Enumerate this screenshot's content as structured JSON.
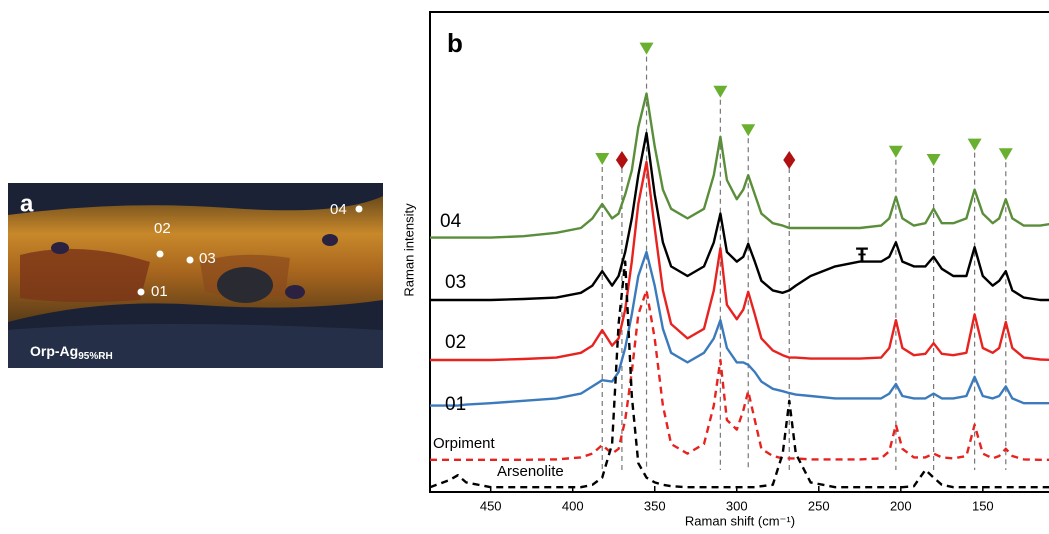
{
  "panel_a": {
    "letter": "a",
    "label": {
      "main": "Orp-Ag",
      "sub": "95%RH"
    },
    "points": [
      "02",
      "03",
      "01",
      "04"
    ]
  },
  "chart_data": {
    "type": "line",
    "panel_letter": "b",
    "xlabel": "Raman shift (cm⁻¹)",
    "ylabel": "Raman intensity",
    "xlim": [
      487,
      106
    ],
    "xticks": [
      450,
      400,
      350,
      300,
      250,
      200,
      150
    ],
    "ylim": [
      0,
      100
    ],
    "x": [
      487,
      475,
      470,
      465,
      450,
      430,
      410,
      395,
      388,
      382,
      376,
      372,
      368,
      364,
      360,
      355,
      350,
      345,
      340,
      330,
      320,
      314,
      310,
      306,
      300,
      296,
      293,
      289,
      285,
      278,
      272,
      268,
      264,
      255,
      240,
      225,
      212,
      207,
      203,
      199,
      192,
      185,
      180,
      175,
      168,
      160,
      155,
      150,
      144,
      140,
      136,
      132,
      125,
      115,
      106
    ],
    "series": [
      {
        "name": "04",
        "color": "#5a8e3a",
        "dashed": false,
        "values": [
          53,
          53,
          53,
          53,
          53,
          53.3,
          54,
          55,
          57,
          60,
          57,
          58,
          62,
          67,
          76,
          83,
          72,
          63,
          59,
          57,
          59,
          66,
          74,
          65,
          61,
          63,
          66,
          62,
          58,
          56,
          55.5,
          55,
          55,
          55,
          55,
          55,
          55.5,
          57,
          61.5,
          57,
          55.5,
          56,
          59,
          56,
          56,
          57,
          63,
          58,
          56,
          57,
          61,
          57,
          55.5,
          55.5,
          56
        ]
      },
      {
        "name": "03",
        "color": "#000000",
        "dashed": false,
        "values": [
          40,
          40,
          40,
          40,
          40,
          40.2,
          40.5,
          41.5,
          43,
          46,
          43,
          45,
          50,
          57,
          66,
          74.8,
          62,
          52,
          47,
          45,
          47,
          52,
          58,
          50,
          48,
          49,
          51.7,
          48,
          44,
          42,
          41.5,
          42,
          43,
          45,
          47,
          48,
          48,
          49,
          52,
          48,
          47,
          47,
          49,
          46.5,
          45,
          45,
          51,
          45,
          43,
          44,
          46,
          42,
          40.5,
          40,
          40
        ]
      },
      {
        "name": "02",
        "color": "#e8231f",
        "dashed": false,
        "values": [
          27.5,
          27.5,
          27.5,
          27.5,
          27.5,
          27.7,
          28,
          29,
          30.5,
          33.7,
          30.5,
          32,
          38,
          48,
          60,
          68.75,
          55,
          42,
          35,
          32,
          34,
          42,
          50.8,
          39,
          36,
          38,
          41.7,
          37,
          32,
          29.5,
          28.5,
          28,
          28,
          27.8,
          27.8,
          27.8,
          28,
          30,
          35.8,
          30,
          28.5,
          28.8,
          31,
          28.8,
          28.5,
          29,
          37,
          30,
          29,
          30,
          35.4,
          30,
          28,
          27.6,
          27.5
        ]
      },
      {
        "name": "01",
        "color": "#3b7bbd",
        "dashed": false,
        "values": [
          18,
          18,
          18,
          18.2,
          18.5,
          19,
          19.5,
          20.5,
          22,
          23.3,
          23,
          25,
          30,
          37,
          45,
          50,
          43,
          34,
          29,
          27,
          29,
          32,
          35.8,
          30,
          27,
          27,
          26.5,
          25,
          23,
          21.5,
          21,
          20.6,
          20.3,
          20,
          19.5,
          19.5,
          19.5,
          20.5,
          22.5,
          20,
          19.5,
          19.5,
          20.5,
          19.5,
          19.5,
          20,
          24,
          20,
          19.5,
          20,
          22,
          19.5,
          18.5,
          18.5,
          18.5
        ]
      },
      {
        "name": "Orpiment",
        "color": "#e8231f",
        "dashed": true,
        "values": [
          6.7,
          6.7,
          6.7,
          6.7,
          6.7,
          6.7,
          6.8,
          7.2,
          8,
          9.8,
          8,
          9,
          15,
          25,
          37,
          42,
          32,
          18,
          10,
          8,
          10,
          18,
          27.5,
          15,
          13,
          17,
          21,
          15,
          9,
          7.5,
          7,
          7,
          7,
          6.8,
          6.8,
          6.8,
          7,
          8.5,
          14,
          9,
          7.2,
          7.2,
          8,
          7.2,
          7,
          7.5,
          14,
          8,
          7,
          7.5,
          9,
          7.5,
          6.8,
          6.7,
          6.7
        ]
      },
      {
        "name": "Arsenolite",
        "color": "#000000",
        "dashed": true,
        "values": [
          1,
          2.5,
          3.5,
          2,
          1,
          1,
          1,
          1,
          1.5,
          3,
          10,
          35,
          48,
          20,
          6,
          3,
          2,
          1.5,
          1.2,
          1,
          1,
          1,
          1,
          1,
          1,
          1,
          1,
          1,
          1.2,
          1.5,
          8,
          19,
          8,
          2,
          1,
          1,
          1,
          1,
          1,
          1,
          1.2,
          4.6,
          3,
          1.5,
          1,
          1,
          1,
          1,
          1,
          1,
          1,
          1,
          1,
          1,
          1
        ]
      }
    ],
    "annotations": {
      "orpiment_peaks": [
        382,
        355,
        310,
        293,
        203,
        180,
        155,
        136
      ],
      "arsenolite_peaks": [
        370,
        268
      ],
      "symbol": "Ŧ"
    }
  }
}
